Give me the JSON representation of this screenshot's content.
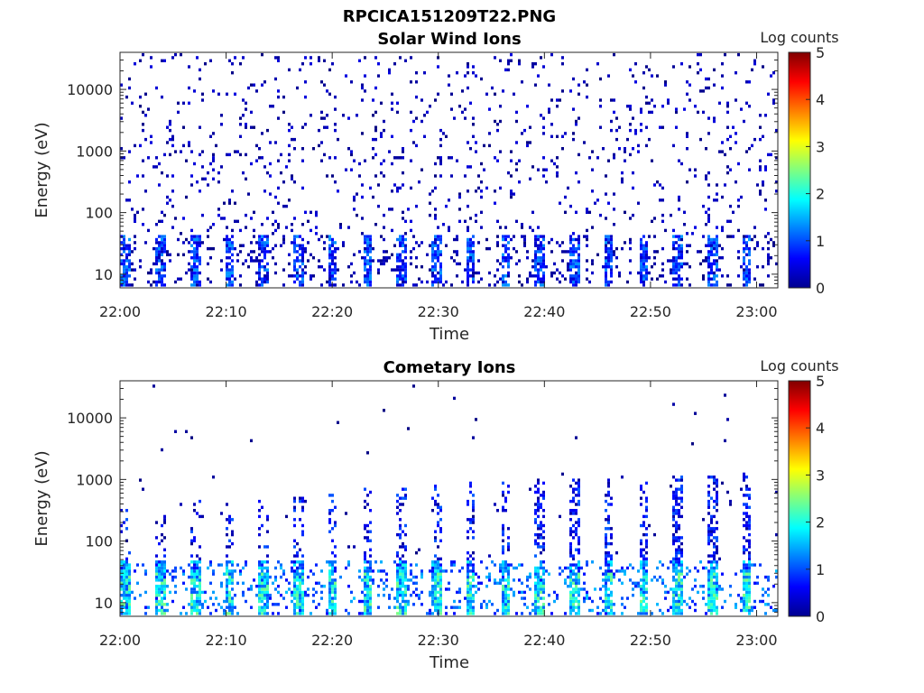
{
  "figure": {
    "title": "RPCICA151209T22.PNG"
  },
  "chart_data": [
    {
      "type": "heatmap",
      "title": "Solar Wind Ions",
      "xlabel": "Time",
      "ylabel": "Energy (eV)",
      "x_ticks": [
        "22:00",
        "22:10",
        "22:20",
        "22:30",
        "22:40",
        "22:50",
        "23:00"
      ],
      "y_scale": "log",
      "y_ticks": [
        "10",
        "100",
        "1000",
        "10000"
      ],
      "ylim": [
        6,
        40000
      ],
      "colorbar": {
        "label": "Log counts",
        "range": [
          0,
          5
        ],
        "ticks": [
          "0",
          "1",
          "2",
          "3",
          "4",
          "5"
        ],
        "colormap": "jet"
      },
      "pattern": "sparse low counts (0-1) scattered from ~40 eV up to ~20000 eV; periodic bursts up to ~1.5 log counts below 40 eV every ~3 minutes"
    },
    {
      "type": "heatmap",
      "title": "Cometary Ions",
      "xlabel": "Time",
      "ylabel": "Energy (eV)",
      "x_ticks": [
        "22:00",
        "22:10",
        "22:20",
        "22:30",
        "22:40",
        "22:50",
        "23:00"
      ],
      "y_scale": "log",
      "y_ticks": [
        "10",
        "100",
        "1000",
        "10000"
      ],
      "ylim": [
        6,
        40000
      ],
      "colorbar": {
        "label": "Log counts",
        "range": [
          0,
          5
        ],
        "ticks": [
          "0",
          "1",
          "2",
          "3",
          "4",
          "5"
        ],
        "colormap": "jet"
      },
      "pattern": "periodic columns every ~3 minutes; peak ~2.5 log counts at 10-40 eV, extending sparsely up to ~1000 eV later in the hour; few isolated counts near 10000 eV"
    }
  ]
}
